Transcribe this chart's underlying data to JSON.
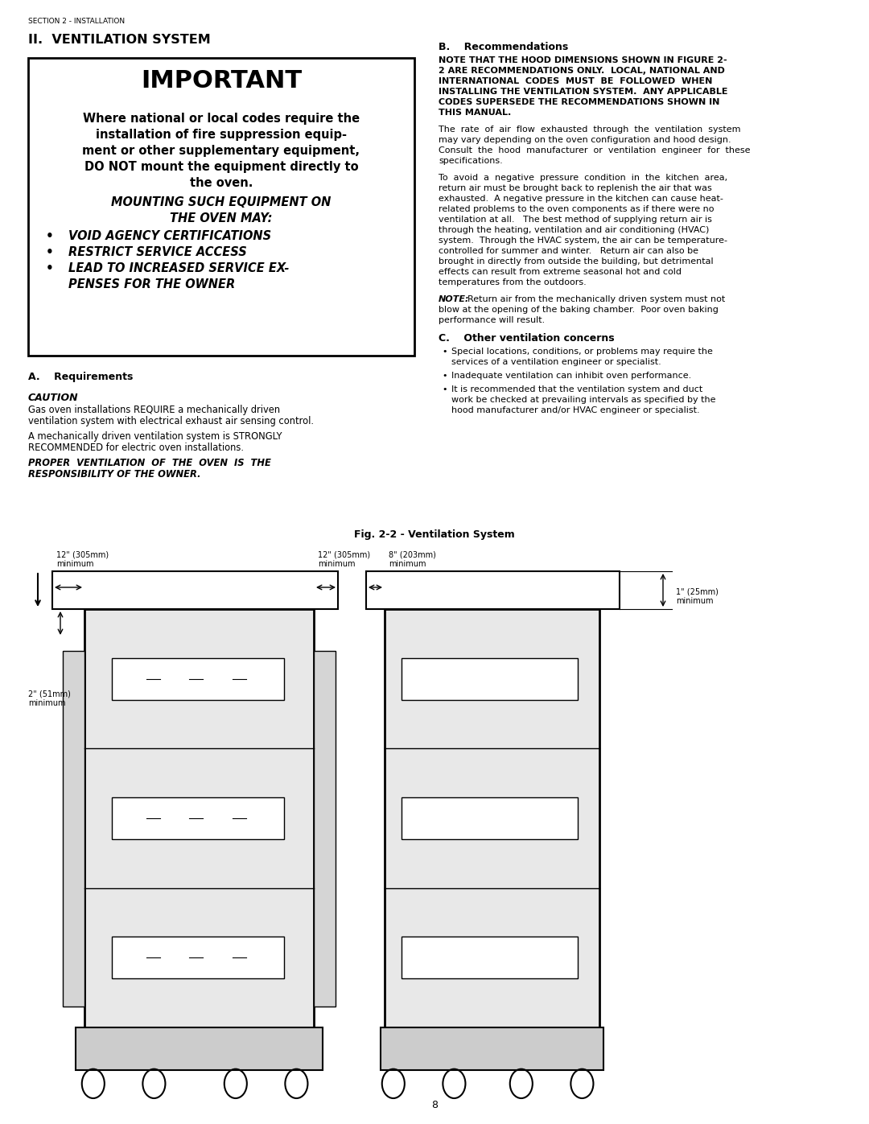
{
  "page_width": 10.8,
  "page_height": 13.97,
  "bg_color": "#ffffff",
  "header_text": "SECTION 2 - INSTALLATION",
  "section_title": "II.  VENTILATION SYSTEM",
  "important_title": "IMPORTANT",
  "section_a_title": "A.    Requirements",
  "caution_label": "CAUTION",
  "section_b_title": "B.    Recommendations",
  "section_c_title": "C.    Other ventilation concerns",
  "fig_caption": "Fig. 2-2 - Ventilation System",
  "page_number": "8",
  "left_label1a": "12\" (305mm)",
  "left_label1b": "minimum",
  "left_label2a": "12\" (305mm)",
  "left_label2b": "minimum",
  "right_label1a": "8\" (203mm)",
  "right_label1b": "minimum",
  "left_side_label1": "2\" (51mm)",
  "left_side_label2": "minimum",
  "right_side_label1": "1\" (25mm)",
  "right_side_label2": "minimum"
}
